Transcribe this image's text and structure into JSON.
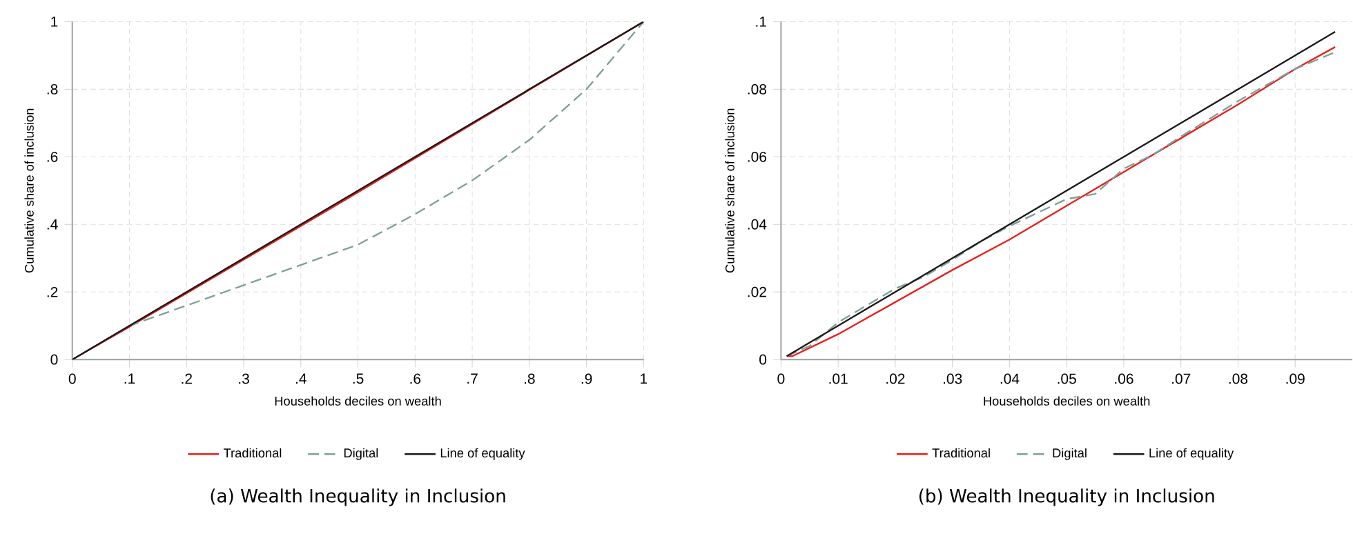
{
  "chart_data": [
    {
      "type": "line",
      "title": "(a) Wealth Inequality in Inclusion",
      "xlabel": "Households deciles on wealth",
      "ylabel": "Cumulative share of inclusion",
      "xlim": [
        0,
        1
      ],
      "ylim": [
        0,
        1
      ],
      "xticks": [
        0,
        {
          "value": 0.1,
          "label": ".1"
        },
        {
          "value": 0.2,
          "label": ".2"
        },
        {
          "value": 0.3,
          "label": ".3"
        },
        {
          "value": 0.4,
          "label": ".4"
        },
        {
          "value": 0.5,
          "label": ".5"
        },
        {
          "value": 0.6,
          "label": ".6"
        },
        {
          "value": 0.7,
          "label": ".7"
        },
        {
          "value": 0.8,
          "label": ".8"
        },
        {
          "value": 0.9,
          "label": ".9"
        },
        1
      ],
      "yticks": [
        0,
        {
          "value": 0.2,
          "label": ".2"
        },
        {
          "value": 0.4,
          "label": ".4"
        },
        {
          "value": 0.6,
          "label": ".6"
        },
        {
          "value": 0.8,
          "label": ".8"
        },
        1
      ],
      "grid": true,
      "legend": "bottom",
      "marker": "none",
      "series": [
        {
          "name": "Traditional",
          "color": "#e8201c",
          "line_style": "solid",
          "x": [
            0,
            0.1,
            0.5,
            1
          ],
          "values": [
            0,
            0.097,
            0.495,
            1
          ]
        },
        {
          "name": "Digital",
          "color": "#7f9f9a",
          "line_style": "dashed",
          "x": [
            0,
            0.1,
            0.2,
            0.3,
            0.4,
            0.5,
            0.6,
            0.7,
            0.8,
            0.9,
            1
          ],
          "values": [
            0,
            0.1,
            0.16,
            0.22,
            0.28,
            0.34,
            0.43,
            0.53,
            0.65,
            0.8,
            1
          ]
        },
        {
          "name": "Line of equality",
          "color": "#1a1a1a",
          "line_style": "solid",
          "x": [
            0,
            1
          ],
          "values": [
            0,
            1
          ]
        }
      ]
    },
    {
      "type": "line",
      "title": "(b) Wealth Inequality in Inclusion",
      "xlabel": "Households deciles on wealth",
      "ylabel": "Cumulative share of inclusion",
      "xlim": [
        0,
        0.1
      ],
      "ylim": [
        0,
        0.1
      ],
      "xticks": [
        0,
        {
          "value": 0.01,
          "label": ".01"
        },
        {
          "value": 0.02,
          "label": ".02"
        },
        {
          "value": 0.03,
          "label": ".03"
        },
        {
          "value": 0.04,
          "label": ".04"
        },
        {
          "value": 0.05,
          "label": ".05"
        },
        {
          "value": 0.06,
          "label": ".06"
        },
        {
          "value": 0.07,
          "label": ".07"
        },
        {
          "value": 0.08,
          "label": ".08"
        },
        {
          "value": 0.09,
          "label": ".09"
        }
      ],
      "yticks": [
        0,
        {
          "value": 0.02,
          "label": ".02"
        },
        {
          "value": 0.04,
          "label": ".04"
        },
        {
          "value": 0.06,
          "label": ".06"
        },
        {
          "value": 0.08,
          "label": ".08"
        },
        {
          "value": 0.1,
          "label": ".1"
        }
      ],
      "grid": true,
      "legend": "bottom",
      "marker": "none",
      "series": [
        {
          "name": "Traditional",
          "color": "#e8201c",
          "line_style": "solid",
          "x": [
            0.001,
            0.002,
            0.01,
            0.02,
            0.03,
            0.04,
            0.05,
            0.06,
            0.07,
            0.08,
            0.09,
            0.097
          ],
          "values": [
            0.001,
            0.001,
            0.0075,
            0.017,
            0.0265,
            0.0355,
            0.0455,
            0.0555,
            0.0655,
            0.0755,
            0.086,
            0.0925
          ]
        },
        {
          "name": "Digital",
          "color": "#7f9f9a",
          "line_style": "dashed",
          "x": [
            0.001,
            0.005,
            0.01,
            0.015,
            0.02,
            0.025,
            0.03,
            0.035,
            0.04,
            0.045,
            0.05,
            0.055,
            0.06,
            0.065,
            0.07,
            0.08,
            0.09,
            0.097
          ],
          "values": [
            0.001,
            0.004,
            0.011,
            0.016,
            0.021,
            0.0245,
            0.0295,
            0.035,
            0.0395,
            0.0435,
            0.0475,
            0.049,
            0.0565,
            0.0605,
            0.066,
            0.0765,
            0.086,
            0.091
          ]
        },
        {
          "name": "Line of equality",
          "color": "#1a1a1a",
          "line_style": "solid",
          "x": [
            0.001,
            0.097
          ],
          "values": [
            0.001,
            0.097
          ]
        }
      ]
    }
  ]
}
